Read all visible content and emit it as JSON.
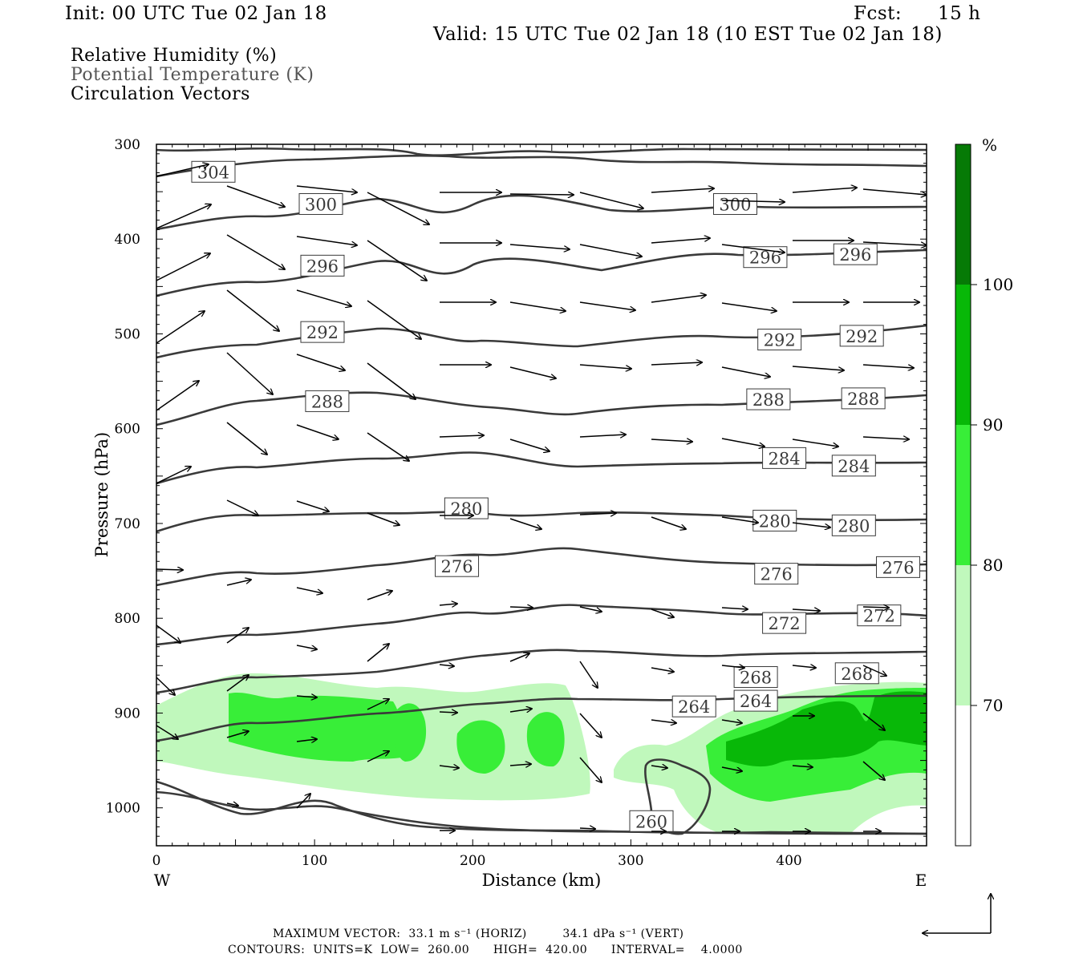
{
  "header": {
    "init": "Init: 00 UTC Tue 02 Jan 18",
    "fcst_label": "Fcst:",
    "fcst_value": "15 h",
    "valid": "Valid: 15 UTC Tue 02 Jan 18 (10 EST Tue 02 Jan 18)"
  },
  "legend": {
    "line1": "Relative Humidity (%)",
    "line2": "Potential Temperature (K)",
    "line3": "Circulation Vectors"
  },
  "footer": {
    "max_vector": "MAXIMUM VECTOR:  33.1 m s⁻¹ (HORIZ)         34.1 dPa s⁻¹ (VERT)",
    "contours": "CONTOURS:  UNITS=K  LOW=  260.00      HIGH=  420.00      INTERVAL=    4.0000"
  },
  "colors": {
    "contour": "#3a3a3a",
    "rh70": "#c0f8bc",
    "rh80": "#38ee38",
    "rh90": "#08b808",
    "rh100": "#067a06"
  },
  "chart_data": {
    "type": "contour",
    "xlabel": "Distance (km)",
    "ylabel": "Pressure (hPa)",
    "xlim": [
      0,
      487
    ],
    "ylim": [
      1040,
      300
    ],
    "x_ticks": [
      0,
      100,
      200,
      300,
      400
    ],
    "y_ticks": [
      300,
      400,
      500,
      600,
      700,
      800,
      900,
      1000
    ],
    "x_left_label": "W",
    "x_right_label": "E",
    "colorbar": {
      "unit": "%",
      "levels": [
        70,
        80,
        90,
        100
      ]
    },
    "theta_labels": [
      {
        "text": "304",
        "x": 36,
        "p": 329
      },
      {
        "text": "300",
        "x": 104,
        "p": 363
      },
      {
        "text": "300",
        "x": 366,
        "p": 363
      },
      {
        "text": "296",
        "x": 105,
        "p": 428
      },
      {
        "text": "296",
        "x": 385,
        "p": 419
      },
      {
        "text": "296",
        "x": 442,
        "p": 416
      },
      {
        "text": "292",
        "x": 105,
        "p": 498
      },
      {
        "text": "292",
        "x": 394,
        "p": 506
      },
      {
        "text": "292",
        "x": 446,
        "p": 502
      },
      {
        "text": "288",
        "x": 108,
        "p": 571
      },
      {
        "text": "288",
        "x": 387,
        "p": 569
      },
      {
        "text": "288",
        "x": 447,
        "p": 568
      },
      {
        "text": "284",
        "x": 397,
        "p": 631
      },
      {
        "text": "284",
        "x": 441,
        "p": 639
      },
      {
        "text": "280",
        "x": 196,
        "p": 684
      },
      {
        "text": "280",
        "x": 391,
        "p": 697
      },
      {
        "text": "280",
        "x": 441,
        "p": 702
      },
      {
        "text": "276",
        "x": 190,
        "p": 745
      },
      {
        "text": "276",
        "x": 392,
        "p": 753
      },
      {
        "text": "276",
        "x": 469,
        "p": 746
      },
      {
        "text": "272",
        "x": 397,
        "p": 805
      },
      {
        "text": "272",
        "x": 457,
        "p": 797
      },
      {
        "text": "268",
        "x": 379,
        "p": 862
      },
      {
        "text": "268",
        "x": 443,
        "p": 858
      },
      {
        "text": "264",
        "x": 340,
        "p": 893
      },
      {
        "text": "264",
        "x": 379,
        "p": 887
      },
      {
        "text": "260",
        "x": 313,
        "p": 1014
      }
    ]
  }
}
